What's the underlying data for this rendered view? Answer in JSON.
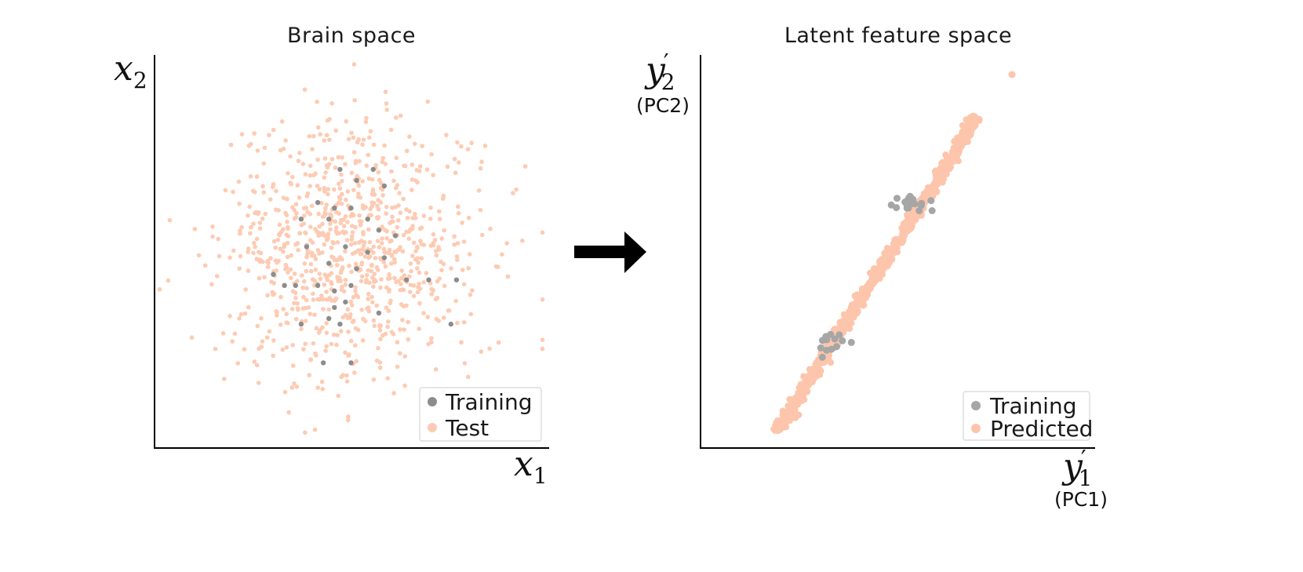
{
  "colors": {
    "training_left": "#8c8c8c",
    "training_right": "#a6a6a6",
    "test": "#fdcbb3",
    "predicted": "#fdc5ab",
    "axis": "#000000",
    "legend_border": "#dddddd"
  },
  "arrow": {
    "icon": "right-arrow-icon"
  },
  "chart_data": [
    {
      "type": "scatter",
      "title": "Brain space",
      "xlabel": {
        "var": "x",
        "sub": "1"
      },
      "ylabel": {
        "var": "x",
        "sub": "2"
      },
      "xlim": [
        -3.5,
        3.5
      ],
      "ylim": [
        -3.5,
        3.5
      ],
      "grid": false,
      "legend": {
        "placement": "bottom-right",
        "entries": [
          "Training",
          "Test"
        ]
      },
      "series": [
        {
          "name": "Test",
          "distribution": {
            "kind": "gaussian",
            "count": 900,
            "mean": [
              0,
              0
            ],
            "std": [
              1.15,
              1.15
            ],
            "seed": 7
          }
        },
        {
          "name": "Training",
          "points": [
            [
              -0.2,
              1.5
            ],
            [
              0.1,
              1.3
            ],
            [
              0.4,
              1.5
            ],
            [
              0.6,
              1.2
            ],
            [
              -0.6,
              0.9
            ],
            [
              -0.3,
              0.8
            ],
            [
              0,
              0.8
            ],
            [
              0.3,
              0.6
            ],
            [
              -0.9,
              0.6
            ],
            [
              -0.4,
              0.6
            ],
            [
              0.5,
              0.4
            ],
            [
              0.8,
              0.3
            ],
            [
              -0.8,
              0.1
            ],
            [
              -0.1,
              0.1
            ],
            [
              0.3,
              0.0
            ],
            [
              0.6,
              -0.1
            ],
            [
              -0.4,
              -0.2
            ],
            [
              0.1,
              -0.3
            ],
            [
              1.0,
              -0.5
            ],
            [
              1.4,
              -0.5
            ],
            [
              -1.4,
              -0.4
            ],
            [
              -1.2,
              -0.6
            ],
            [
              -0.6,
              -0.6
            ],
            [
              -0.3,
              -0.7
            ],
            [
              0,
              -0.6
            ],
            [
              -0.1,
              -0.9
            ],
            [
              -0.3,
              -1.0
            ],
            [
              0.5,
              -1.1
            ],
            [
              -0.4,
              -1.2
            ],
            [
              -0.2,
              -1.3
            ],
            [
              -1.0,
              -0.6
            ],
            [
              1.9,
              -0.5
            ],
            [
              1.8,
              -1.3
            ],
            [
              -0.9,
              -1.3
            ],
            [
              -0.5,
              -2.0
            ],
            [
              0,
              -2.0
            ]
          ]
        }
      ]
    },
    {
      "type": "scatter",
      "title": "Latent feature space",
      "xlabel": {
        "var": "y",
        "sub": "1",
        "note": "(PC1)"
      },
      "ylabel": {
        "var": "y",
        "sub": "2",
        "note": "(PC2)"
      },
      "grid": false,
      "legend": {
        "placement": "bottom-right",
        "entries": [
          "Training",
          "Predicted"
        ]
      },
      "series": [
        {
          "name": "Predicted",
          "distribution": {
            "kind": "diagonal-band",
            "count": 900,
            "from": [
              0.19,
              0.04
            ],
            "to": [
              0.7,
              0.84
            ],
            "jitter": 0.006,
            "seed": 11
          },
          "extra_points": [
            [
              0.79,
              0.95
            ]
          ]
        },
        {
          "name": "Training",
          "clusters": [
            {
              "center": [
                0.55,
                0.62
              ],
              "spread": [
                0.025,
                0.01
              ],
              "count": 18
            },
            {
              "center": [
                0.33,
                0.26
              ],
              "spread": [
                0.022,
                0.012
              ],
              "count": 14
            }
          ]
        }
      ]
    }
  ]
}
